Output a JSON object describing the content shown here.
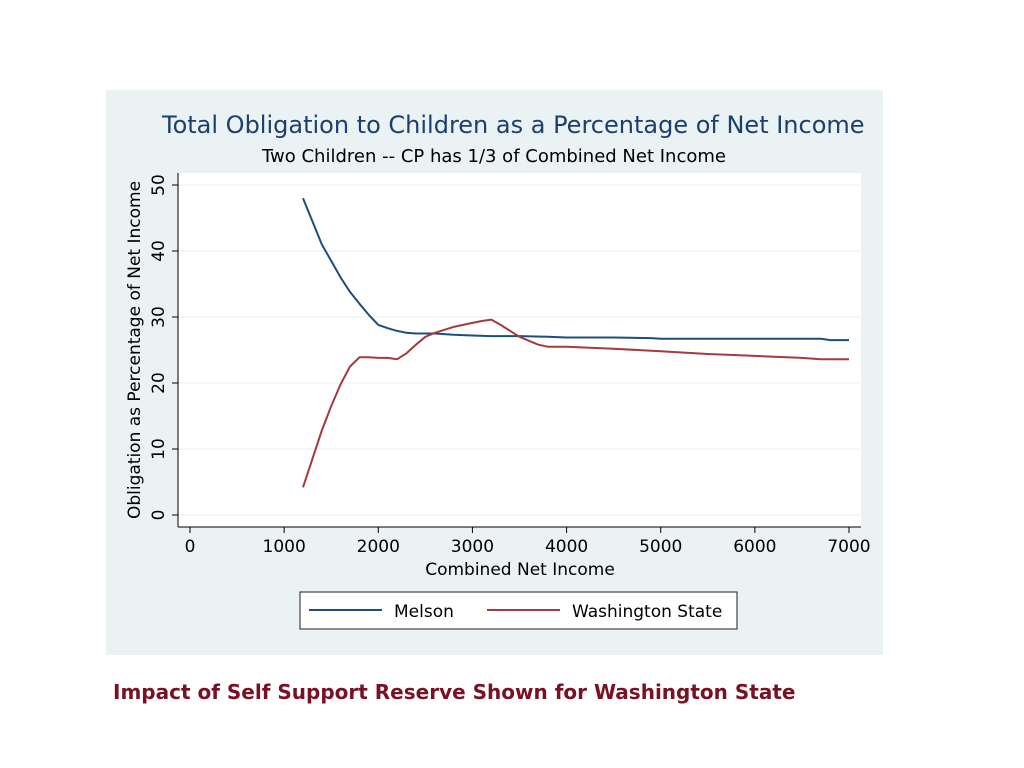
{
  "caption": "Impact of Self Support Reserve Shown for Washington State",
  "colors": {
    "figure_bg": "#eaf2f3",
    "plot_bg": "#ffffff",
    "grid": "#eaf2f3",
    "melson": "#1c4f7c",
    "washington": "#a33a3f",
    "caption": "#7a1023"
  },
  "chart_data": {
    "type": "line",
    "title": "Total Obligation to Children as a Percentage of Net Income",
    "subtitle": "Two Children -- CP has 1/3 of Combined Net Income",
    "xlabel": "Combined Net Income",
    "ylabel": "Obligation as Percentage of Net Income",
    "xlim": [
      0,
      7000
    ],
    "ylim": [
      0,
      50
    ],
    "xticks": [
      "0",
      "1000",
      "2000",
      "3000",
      "4000",
      "5000",
      "6000",
      "7000"
    ],
    "yticks": [
      "0",
      "10",
      "20",
      "30",
      "40",
      "50"
    ],
    "grid": true,
    "legend_position": "bottom",
    "series": [
      {
        "name": "Melson",
        "x": [
          1200,
          1300,
          1400,
          1500,
          1600,
          1700,
          1800,
          1900,
          2000,
          2100,
          2200,
          2300,
          2400,
          2500,
          2600,
          2800,
          3000,
          3200,
          3500,
          3800,
          4000,
          4500,
          4900,
          5000,
          5500,
          6000,
          6500,
          6700,
          6800,
          7000
        ],
        "y": [
          48.0,
          44.5,
          41.0,
          38.5,
          36.0,
          33.8,
          32.0,
          30.3,
          28.8,
          28.3,
          27.9,
          27.6,
          27.5,
          27.5,
          27.5,
          27.3,
          27.2,
          27.1,
          27.1,
          27.0,
          26.9,
          26.9,
          26.8,
          26.7,
          26.7,
          26.7,
          26.7,
          26.7,
          26.5,
          26.5
        ]
      },
      {
        "name": "Washington State",
        "x": [
          1200,
          1300,
          1400,
          1500,
          1600,
          1700,
          1800,
          1900,
          2000,
          2100,
          2200,
          2300,
          2400,
          2500,
          2600,
          2800,
          3000,
          3100,
          3200,
          3300,
          3500,
          3700,
          3800,
          4000,
          4500,
          5000,
          5500,
          6000,
          6500,
          6700,
          7000
        ],
        "y": [
          4.2,
          8.5,
          12.8,
          16.5,
          19.8,
          22.5,
          23.9,
          23.9,
          23.8,
          23.8,
          23.6,
          24.5,
          25.8,
          27.0,
          27.6,
          28.5,
          29.1,
          29.4,
          29.6,
          28.8,
          27.0,
          25.8,
          25.5,
          25.5,
          25.2,
          24.8,
          24.4,
          24.1,
          23.8,
          23.6,
          23.6
        ]
      }
    ]
  }
}
